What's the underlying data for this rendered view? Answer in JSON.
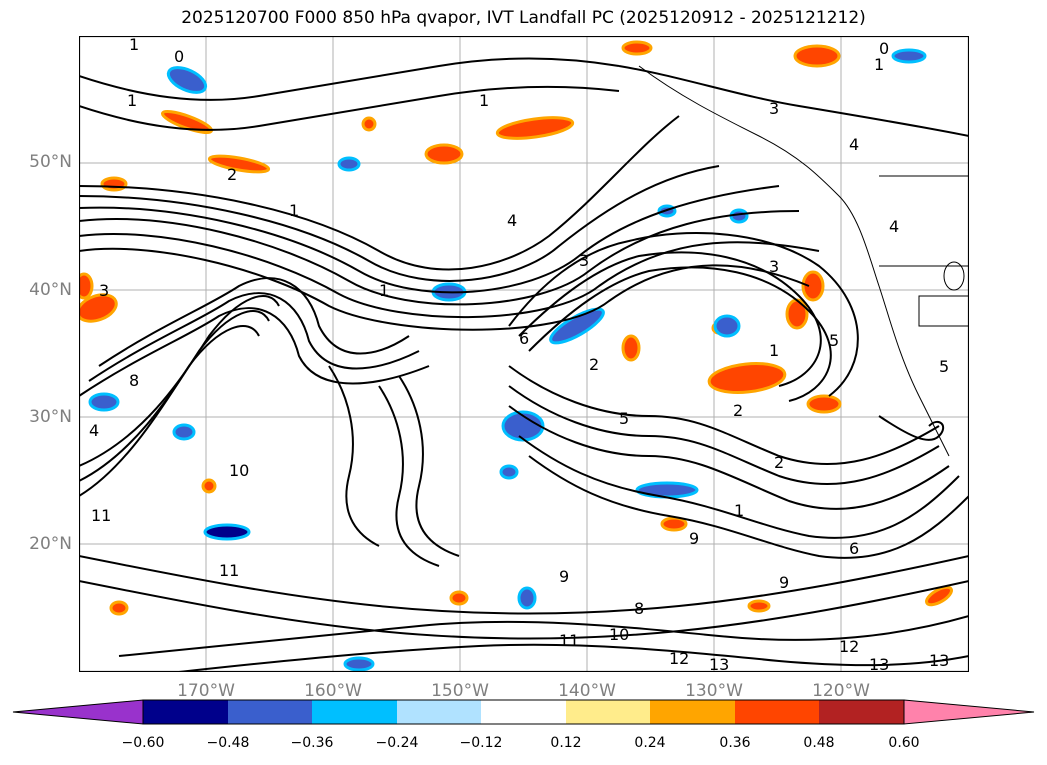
{
  "title": "2025120700 F000 850 hPa qvapor, IVT Landfall PC (2025120912 - 2025121212)",
  "map": {
    "lat_labels": [
      "50°N",
      "40°N",
      "30°N",
      "20°N"
    ],
    "lon_labels": [
      "170°W",
      "160°W",
      "150°W",
      "140°W",
      "130°W",
      "120°W"
    ],
    "contour_labels": [
      "1",
      "0",
      "1",
      "2",
      "0",
      "3",
      "4",
      "5",
      "6",
      "8",
      "9",
      "10",
      "11",
      "12",
      "13"
    ]
  },
  "colorbar": {
    "ticks": [
      "−0.60",
      "−0.48",
      "−0.36",
      "−0.24",
      "−0.12",
      "0.12",
      "0.24",
      "0.36",
      "0.48",
      "0.60"
    ],
    "colors": [
      "#9932cc",
      "#00008b",
      "#3a5fcd",
      "#00bfff",
      "#b0e2ff",
      "#ffffff",
      "#ffec8b",
      "#ffa500",
      "#ff4500",
      "#b22222",
      "#ff82ab"
    ]
  }
}
